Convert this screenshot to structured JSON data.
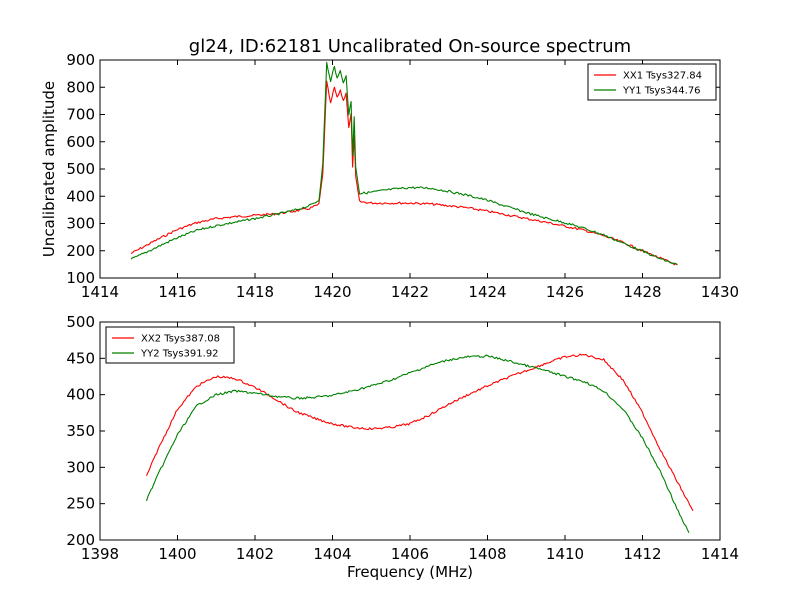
{
  "figure": {
    "title": "gl24, ID:62181 Uncalibrated On-source spectrum"
  },
  "chart_data": [
    {
      "type": "line",
      "title": "gl24, ID:62181 Uncalibrated On-source spectrum",
      "xlabel": "",
      "ylabel": "Uncalibrated amplitude",
      "xlim": [
        1414,
        1430
      ],
      "ylim": [
        100,
        900
      ],
      "xticks": [
        1414,
        1416,
        1418,
        1420,
        1422,
        1424,
        1426,
        1428,
        1430
      ],
      "yticks": [
        100,
        200,
        300,
        400,
        500,
        600,
        700,
        800,
        900
      ],
      "grid": false,
      "legend_position": "top-right",
      "series": [
        {
          "name": "XX1 Tsys327.84",
          "color": "#ff0000",
          "x": [
            1414.8,
            1415.2,
            1415.6,
            1416.0,
            1416.5,
            1417.0,
            1417.5,
            1418.0,
            1418.5,
            1419.0,
            1419.4,
            1419.65,
            1419.75,
            1419.85,
            1419.95,
            1420.05,
            1420.12,
            1420.2,
            1420.28,
            1420.35,
            1420.42,
            1420.48,
            1420.52,
            1420.56,
            1420.6,
            1420.7,
            1421.0,
            1421.5,
            1422.0,
            1422.5,
            1423.0,
            1423.5,
            1424.0,
            1424.5,
            1425.0,
            1425.5,
            1426.0,
            1426.5,
            1427.0,
            1427.5,
            1428.0,
            1428.5,
            1428.9
          ],
          "y": [
            190,
            220,
            250,
            278,
            303,
            318,
            325,
            330,
            335,
            345,
            355,
            370,
            480,
            820,
            740,
            800,
            760,
            790,
            750,
            780,
            650,
            700,
            510,
            620,
            470,
            380,
            375,
            375,
            375,
            372,
            365,
            357,
            345,
            332,
            318,
            305,
            290,
            275,
            255,
            230,
            200,
            170,
            148
          ]
        },
        {
          "name": "YY1 Tsys344.76",
          "color": "#008000",
          "x": [
            1414.8,
            1415.2,
            1415.6,
            1416.0,
            1416.5,
            1417.0,
            1417.5,
            1418.0,
            1418.5,
            1419.0,
            1419.4,
            1419.65,
            1419.75,
            1419.85,
            1419.95,
            1420.05,
            1420.12,
            1420.2,
            1420.28,
            1420.35,
            1420.42,
            1420.48,
            1420.52,
            1420.56,
            1420.6,
            1420.7,
            1421.0,
            1421.5,
            1422.0,
            1422.5,
            1423.0,
            1423.5,
            1424.0,
            1424.5,
            1425.0,
            1425.5,
            1426.0,
            1426.5,
            1427.0,
            1427.5,
            1428.0,
            1428.5,
            1428.9
          ],
          "y": [
            168,
            195,
            222,
            248,
            275,
            292,
            305,
            318,
            332,
            348,
            365,
            385,
            520,
            890,
            820,
            880,
            830,
            860,
            820,
            840,
            700,
            750,
            550,
            690,
            510,
            410,
            415,
            425,
            432,
            430,
            418,
            403,
            385,
            362,
            340,
            320,
            303,
            282,
            258,
            228,
            198,
            168,
            148
          ]
        }
      ]
    },
    {
      "type": "line",
      "title": "",
      "xlabel": "Frequency (MHz)",
      "ylabel": "",
      "xlim": [
        1398,
        1414
      ],
      "ylim": [
        200,
        500
      ],
      "xticks": [
        1398,
        1400,
        1402,
        1404,
        1406,
        1408,
        1410,
        1412,
        1414
      ],
      "yticks": [
        200,
        250,
        300,
        350,
        400,
        450,
        500
      ],
      "grid": false,
      "legend_position": "top-left",
      "series": [
        {
          "name": "XX2 Tsys387.08",
          "color": "#ff0000",
          "x": [
            1399.2,
            1399.5,
            1400.0,
            1400.5,
            1401.0,
            1401.5,
            1402.0,
            1402.5,
            1403.0,
            1403.5,
            1404.0,
            1404.5,
            1405.0,
            1405.5,
            1406.0,
            1406.5,
            1407.0,
            1407.5,
            1408.0,
            1408.5,
            1409.0,
            1409.5,
            1410.0,
            1410.5,
            1411.0,
            1411.5,
            1412.0,
            1412.5,
            1413.0,
            1413.3
          ],
          "y": [
            288,
            325,
            380,
            412,
            425,
            422,
            410,
            395,
            378,
            368,
            360,
            355,
            353,
            355,
            360,
            372,
            387,
            400,
            412,
            423,
            433,
            443,
            452,
            455,
            448,
            420,
            375,
            320,
            270,
            240
          ]
        },
        {
          "name": "YY2 Tsys391.92",
          "color": "#008000",
          "x": [
            1399.2,
            1399.5,
            1400.0,
            1400.5,
            1401.0,
            1401.5,
            1402.0,
            1402.5,
            1403.0,
            1403.5,
            1404.0,
            1404.5,
            1405.0,
            1405.5,
            1406.0,
            1406.5,
            1407.0,
            1407.5,
            1408.0,
            1408.5,
            1409.0,
            1409.5,
            1410.0,
            1410.5,
            1411.0,
            1411.5,
            1412.0,
            1412.5,
            1413.0,
            1413.2
          ],
          "y": [
            255,
            290,
            345,
            385,
            400,
            405,
            402,
            398,
            395,
            396,
            399,
            405,
            412,
            420,
            430,
            440,
            448,
            452,
            453,
            447,
            440,
            433,
            425,
            418,
            405,
            380,
            340,
            290,
            230,
            210
          ]
        }
      ]
    }
  ]
}
